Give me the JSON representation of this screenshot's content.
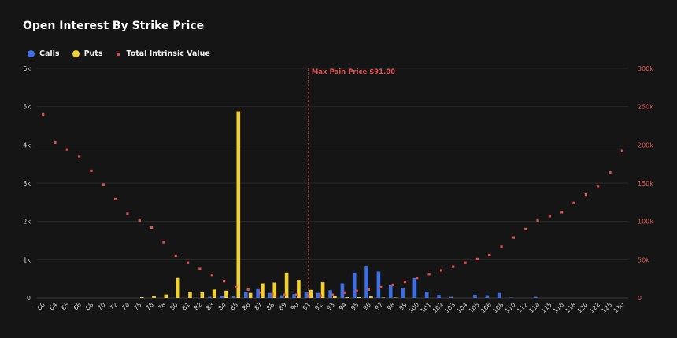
{
  "chart_data": {
    "type": "bar",
    "title": "Open Interest By Strike Price",
    "categories": [
      "60",
      "64",
      "65",
      "66",
      "68",
      "70",
      "72",
      "74",
      "75",
      "76",
      "78",
      "80",
      "81",
      "82",
      "83",
      "84",
      "85",
      "86",
      "87",
      "88",
      "89",
      "90",
      "91",
      "92",
      "93",
      "94",
      "95",
      "96",
      "97",
      "98",
      "99",
      "100",
      "101",
      "102",
      "103",
      "104",
      "105",
      "106",
      "108",
      "110",
      "112",
      "114",
      "115",
      "116",
      "118",
      "120",
      "122",
      "125",
      "130"
    ],
    "series": [
      {
        "name": "Calls",
        "color": "#3a6fe8",
        "axis": "left",
        "values": [
          0,
          0,
          0,
          0,
          0,
          0,
          0,
          0,
          0,
          0,
          0,
          0,
          0,
          0,
          30,
          60,
          40,
          160,
          230,
          130,
          70,
          100,
          150,
          130,
          200,
          380,
          660,
          820,
          690,
          330,
          260,
          520,
          160,
          80,
          30,
          0,
          80,
          70,
          130,
          10,
          0,
          30,
          0,
          0,
          0,
          0,
          0,
          0,
          0
        ]
      },
      {
        "name": "Puts",
        "color": "#f2d12f",
        "axis": "left",
        "values": [
          0,
          0,
          0,
          0,
          0,
          0,
          0,
          0,
          20,
          50,
          90,
          520,
          160,
          150,
          220,
          190,
          4880,
          130,
          380,
          400,
          660,
          470,
          210,
          410,
          60,
          20,
          20,
          40,
          10,
          10,
          0,
          0,
          0,
          0,
          0,
          0,
          0,
          0,
          0,
          0,
          0,
          0,
          0,
          0,
          0,
          0,
          0,
          0,
          0
        ]
      },
      {
        "name": "Total Intrinsic Value",
        "color": "#d9534f",
        "axis": "right",
        "type": "scatter",
        "values": [
          240000,
          203000,
          194000,
          185000,
          166000,
          148000,
          129000,
          110000,
          101000,
          92000,
          73000,
          55000,
          46000,
          38000,
          30000,
          22000,
          14000,
          11000,
          7000,
          5000,
          4000,
          4000,
          2500,
          3000,
          4000,
          7000,
          9000,
          11000,
          14000,
          17000,
          21000,
          26000,
          31000,
          36000,
          41000,
          46000,
          51000,
          56000,
          67000,
          79000,
          90000,
          101000,
          107000,
          112000,
          124000,
          135000,
          146000,
          164000,
          192000
        ]
      }
    ],
    "ylim": [
      0,
      6000
    ],
    "y_ticks": [
      "0",
      "1k",
      "2k",
      "3k",
      "4k",
      "5k",
      "6k"
    ],
    "y2lim": [
      0,
      300000
    ],
    "y2_ticks": [
      "0",
      "50k",
      "100k",
      "150k",
      "200k",
      "250k",
      "300k"
    ],
    "annotation": {
      "label": "Max Pain Price $91.00",
      "category": "91"
    },
    "legend_placement": "top-left",
    "grid": true
  },
  "legend": {
    "calls": "Calls",
    "puts": "Puts",
    "intrinsic": "Total Intrinsic Value"
  },
  "colors": {
    "calls": "#3a6fe8",
    "puts": "#f2d12f",
    "intrinsic": "#d9534f",
    "grid": "#262626",
    "background": "#151515"
  }
}
